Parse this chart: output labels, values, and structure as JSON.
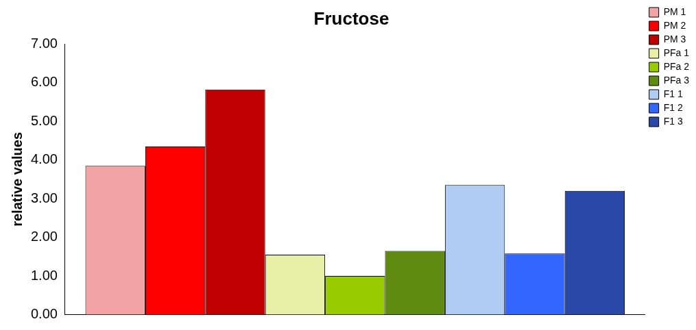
{
  "chart_data": {
    "type": "bar",
    "title": "Fructose",
    "ylabel": "relative values",
    "categories": [
      null
    ],
    "series": [
      {
        "name": "PM 1",
        "color": "#f2a3a3",
        "values": [
          3.85
        ]
      },
      {
        "name": "PM 2",
        "color": "#ff0000",
        "values": [
          4.35
        ]
      },
      {
        "name": "PM 3",
        "color": "#c00000",
        "values": [
          5.82
        ]
      },
      {
        "name": "PFa 1",
        "color": "#e8f0a8",
        "values": [
          1.55
        ]
      },
      {
        "name": "PFa 2",
        "color": "#99cc00",
        "values": [
          1.0
        ]
      },
      {
        "name": "PFa 3",
        "color": "#5f8c10",
        "values": [
          1.65
        ]
      },
      {
        "name": "F1 1",
        "color": "#b0ccf2",
        "values": [
          3.35
        ]
      },
      {
        "name": "F1 2",
        "color": "#3366ff",
        "values": [
          1.58
        ]
      },
      {
        "name": "F1 3",
        "color": "#2a48a8",
        "values": [
          3.2
        ]
      }
    ],
    "ylim": [
      0,
      7
    ],
    "yticks": [
      {
        "value": 0,
        "label": "0.00"
      },
      {
        "value": 1,
        "label": "1.00"
      },
      {
        "value": 2,
        "label": "2.00"
      },
      {
        "value": 3,
        "label": "3.00"
      },
      {
        "value": 4,
        "label": "4.00"
      },
      {
        "value": 5,
        "label": "5.00"
      },
      {
        "value": 6,
        "label": "6.00"
      },
      {
        "value": 7,
        "label": "7.00"
      }
    ],
    "grid": false,
    "legend": "top right"
  }
}
